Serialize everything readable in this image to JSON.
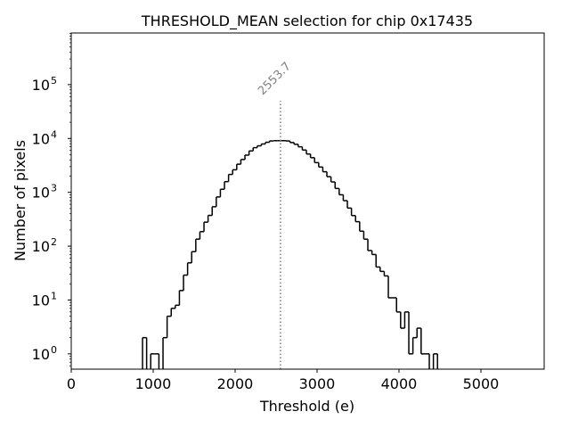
{
  "chart_data": {
    "type": "bar",
    "histtype": "step",
    "title": "THRESHOLD_MEAN selection for chip 0x17435",
    "xlabel": "Threshold (e)",
    "ylabel": "Number of pixels",
    "yscale": "log",
    "xlim": [
      0,
      5772
    ],
    "ylim": [
      0.52,
      910000
    ],
    "grid": false,
    "x_ticks": [
      0,
      1000,
      2000,
      3000,
      4000,
      5000
    ],
    "x_tick_labels": [
      "0",
      "1000",
      "2000",
      "3000",
      "4000",
      "5000"
    ],
    "y_ticks": [
      1,
      10,
      100,
      1000,
      10000,
      100000
    ],
    "y_tick_labels": [
      {
        "base": "10",
        "exp": "0"
      },
      {
        "base": "10",
        "exp": "1"
      },
      {
        "base": "10",
        "exp": "2"
      },
      {
        "base": "10",
        "exp": "3"
      },
      {
        "base": "10",
        "exp": "4"
      },
      {
        "base": "10",
        "exp": "5"
      }
    ],
    "bin_start": 870,
    "bin_width": 50,
    "counts": [
      2,
      0,
      1,
      1,
      0,
      2,
      5,
      7,
      8,
      15,
      29,
      49,
      79,
      135,
      186,
      279,
      373,
      540,
      820,
      1140,
      1580,
      2150,
      2620,
      3330,
      4070,
      4900,
      5870,
      6750,
      7300,
      7900,
      8500,
      9000,
      9100,
      9100,
      9100,
      9000,
      8400,
      7800,
      7000,
      6100,
      5150,
      4400,
      3560,
      2950,
      2410,
      1950,
      1560,
      1180,
      900,
      700,
      510,
      370,
      285,
      190,
      135,
      83,
      70,
      41,
      34,
      28,
      11,
      11,
      6,
      3,
      6,
      1,
      2,
      3,
      1,
      1,
      0,
      1
    ],
    "line_color": "#000000",
    "vline": {
      "x": 2553.7,
      "y_top": 50000,
      "label": "2553.7",
      "color": "#808080",
      "style": "dotted"
    }
  }
}
